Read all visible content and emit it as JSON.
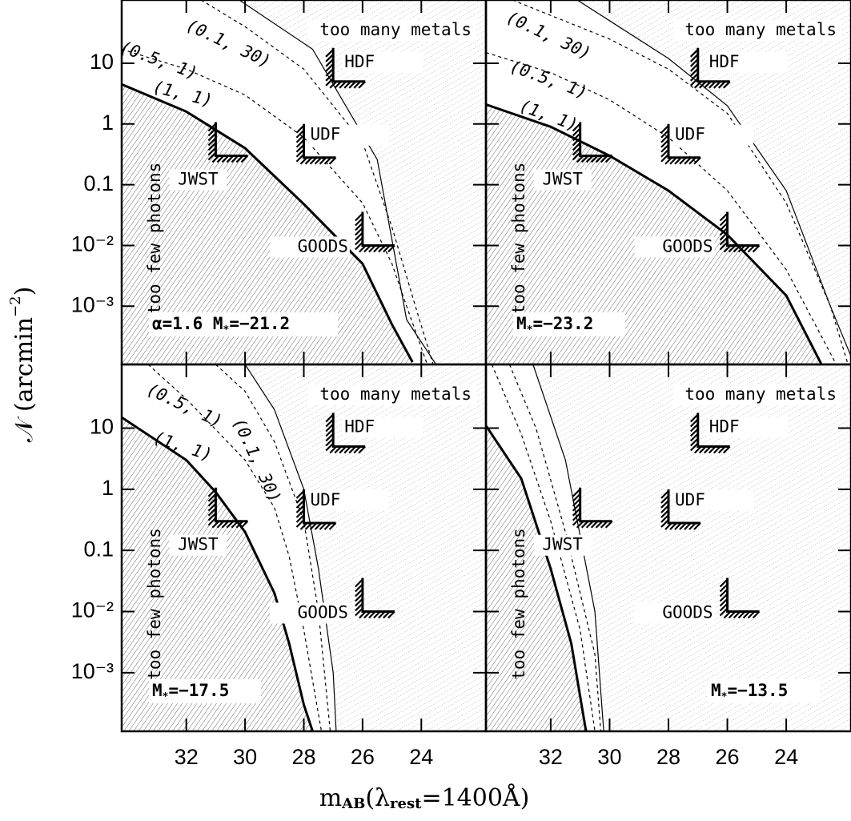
{
  "x_label": [
    "m",
    "AB",
    "(λ",
    "rest",
    "=1400Å)"
  ],
  "y_label": [
    "𝒩 (arcmin",
    "−2",
    ")"
  ],
  "chart_data": [
    {
      "type": "line",
      "log_y": true,
      "annotation": [
        "α=1.6  M",
        "∗",
        "=−21.2"
      ],
      "region_labels": [
        "too many metals",
        "too few photons"
      ],
      "xlim": [
        34.2,
        21.8
      ],
      "ylim": [
        0.00011,
        110
      ],
      "xticks": [
        32,
        30,
        28,
        26,
        24
      ],
      "yticks": [
        10,
        1,
        0.1,
        {
          "value": 0.01,
          "label": "10⁻²"
        },
        {
          "value": 0.001,
          "label": "10⁻³"
        }
      ],
      "series": [
        {
          "name": "(1, 1)",
          "line_style": "thick",
          "x": [
            34.2,
            32,
            30,
            28,
            26,
            25,
            24.3
          ],
          "values": [
            4.5,
            1.6,
            0.4,
            0.048,
            0.005,
            0.0005,
            0.00012
          ]
        },
        {
          "name": "(0.5, 1)",
          "line_style": "dashed",
          "x": [
            34.2,
            32,
            30,
            28,
            26,
            25,
            24.5,
            23.8
          ],
          "values": [
            17,
            8,
            3,
            0.6,
            0.05,
            0.005,
            0.001,
            0.00011
          ]
        },
        {
          "name": "(0.1, 30)",
          "line_style": "dashed",
          "x": [
            31.5,
            30,
            28,
            26,
            25,
            24.2,
            23.6
          ],
          "values": [
            110,
            40,
            8,
            0.5,
            0.02,
            0.001,
            0.00011
          ]
        },
        {
          "line_style": "thin",
          "x": [
            30.2,
            27.7,
            25.5,
            24.5,
            23.5
          ],
          "values": [
            110,
            17,
            0.26,
            0.0006,
            0.00011
          ]
        }
      ],
      "surveys": [
        {
          "name": "HDF",
          "x": 27,
          "y": 5
        },
        {
          "name": "UDF",
          "x": 28,
          "y": 0.28
        },
        {
          "name": "JWST",
          "x": 31,
          "y": 0.3
        },
        {
          "name": "GOODS",
          "x": 26,
          "y": 0.01
        }
      ]
    },
    {
      "type": "line",
      "log_y": true,
      "annotation": [
        "M",
        "∗",
        "=−23.2"
      ],
      "region_labels": [
        "too many metals",
        "too few photons"
      ],
      "xlim": [
        34.2,
        21.8
      ],
      "ylim": [
        0.00011,
        110
      ],
      "xticks": [
        32,
        30,
        28,
        26,
        24
      ],
      "yticks": [
        10,
        1,
        0.1,
        {
          "value": 0.01,
          "label": "10⁻²"
        },
        {
          "value": 0.001,
          "label": "10⁻³"
        }
      ],
      "series": [
        {
          "name": "(1, 1)",
          "line_style": "thick",
          "x": [
            34.2,
            32,
            30,
            28,
            26,
            24,
            22.8
          ],
          "values": [
            2.1,
            0.9,
            0.3,
            0.08,
            0.015,
            0.0015,
            0.00011
          ]
        },
        {
          "name": "(0.5, 1)",
          "line_style": "dashed",
          "x": [
            34.2,
            32,
            30,
            28,
            26,
            24,
            22.3
          ],
          "values": [
            15,
            7,
            2.5,
            0.6,
            0.08,
            0.004,
            0.00011
          ]
        },
        {
          "name": "(0.1, 30)",
          "line_style": "dashed",
          "x": [
            33.3,
            30,
            28,
            26,
            24,
            22.5,
            21.9
          ],
          "values": [
            110,
            25,
            8,
            1.5,
            0.05,
            0.001,
            0.00011
          ]
        },
        {
          "line_style": "thin",
          "x": [
            31.1,
            28,
            26,
            24,
            22.5,
            21.8
          ],
          "values": [
            110,
            12,
            2,
            0.08,
            0.001,
            0.00015
          ]
        }
      ],
      "surveys": [
        {
          "name": "HDF",
          "x": 27,
          "y": 5
        },
        {
          "name": "UDF",
          "x": 28,
          "y": 0.28
        },
        {
          "name": "JWST",
          "x": 31,
          "y": 0.3
        },
        {
          "name": "GOODS",
          "x": 26,
          "y": 0.01
        }
      ]
    },
    {
      "type": "line",
      "log_y": true,
      "annotation": [
        "M",
        "∗",
        "=−17.5"
      ],
      "region_labels": [
        "too many metals",
        "too few photons"
      ],
      "xlim": [
        34.2,
        21.8
      ],
      "ylim": [
        0.00011,
        110
      ],
      "xticks": [
        32,
        30,
        28,
        26,
        24
      ],
      "yticks": [
        10,
        1,
        0.1,
        {
          "value": 0.01,
          "label": "10⁻²"
        },
        {
          "value": 0.001,
          "label": "10⁻³"
        }
      ],
      "series": [
        {
          "name": "(1, 1)",
          "line_style": "thick",
          "x": [
            34.2,
            32,
            31,
            30,
            29,
            28.5,
            28,
            27.7
          ],
          "values": [
            15,
            3,
            0.9,
            0.2,
            0.02,
            0.003,
            0.0003,
            0.00011
          ]
        },
        {
          "name": "(0.5, 1)",
          "line_style": "dashed",
          "x": [
            33.3,
            32,
            30,
            29,
            28.5,
            28,
            27.4
          ],
          "values": [
            110,
            30,
            3,
            0.5,
            0.08,
            0.005,
            0.00011
          ]
        },
        {
          "name": "(0.1, 30)",
          "line_style": "dashed",
          "x": [
            31,
            30,
            29,
            28,
            27.5,
            27.1
          ],
          "values": [
            110,
            40,
            6,
            0.3,
            0.01,
            0.00011
          ]
        },
        {
          "line_style": "thin",
          "x": [
            30,
            29,
            28,
            27.5,
            27,
            26.9
          ],
          "values": [
            110,
            20,
            1,
            0.05,
            0.001,
            0.00011
          ]
        }
      ],
      "surveys": [
        {
          "name": "HDF",
          "x": 27,
          "y": 5
        },
        {
          "name": "UDF",
          "x": 28,
          "y": 0.28
        },
        {
          "name": "JWST",
          "x": 31,
          "y": 0.3
        },
        {
          "name": "GOODS",
          "x": 26,
          "y": 0.01
        }
      ]
    },
    {
      "type": "line",
      "log_y": true,
      "annotation": [
        "M",
        "∗",
        "=−13.5"
      ],
      "region_labels": [
        "too many metals",
        "too few photons"
      ],
      "xlim": [
        34.2,
        21.8
      ],
      "ylim": [
        0.00011,
        110
      ],
      "xticks": [
        32,
        30,
        28,
        26,
        24
      ],
      "yticks": [
        10,
        1,
        0.1,
        {
          "value": 0.01,
          "label": "10⁻²"
        },
        {
          "value": 0.001,
          "label": "10⁻³"
        }
      ],
      "series": [
        {
          "line_style": "thick",
          "x": [
            34.2,
            33,
            32,
            31.3,
            30.8
          ],
          "values": [
            11,
            1.5,
            0.05,
            0.003,
            0.00011
          ]
        },
        {
          "line_style": "dashed",
          "x": [
            34,
            33,
            32,
            31,
            30.5
          ],
          "values": [
            110,
            8,
            0.3,
            0.005,
            0.00011
          ]
        },
        {
          "line_style": "dashed",
          "x": [
            33.4,
            32.5,
            31.5,
            30.5,
            30.3
          ],
          "values": [
            110,
            10,
            0.2,
            0.002,
            0.00011
          ]
        },
        {
          "line_style": "thin",
          "x": [
            32.6,
            31.5,
            30.5,
            30.2
          ],
          "values": [
            110,
            3,
            0.01,
            0.00011
          ]
        }
      ],
      "surveys": [
        {
          "name": "HDF",
          "x": 27,
          "y": 5
        },
        {
          "name": "UDF",
          "x": 28,
          "y": 0.28
        },
        {
          "name": "JWST",
          "x": 31,
          "y": 0.3
        },
        {
          "name": "GOODS",
          "x": 26,
          "y": 0.01
        }
      ]
    }
  ]
}
